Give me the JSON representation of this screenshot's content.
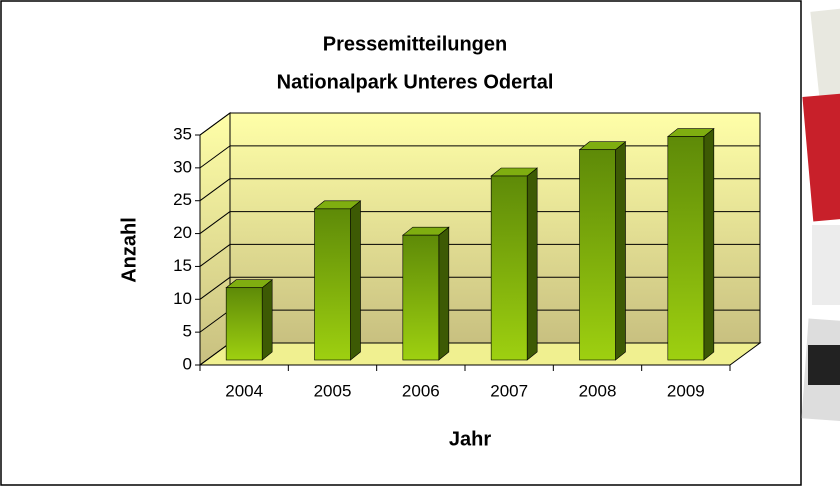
{
  "chart_data": {
    "type": "bar3d",
    "title": [
      "Pressemitteilungen",
      "Nationalpark Unteres Odertal"
    ],
    "x_label": "Jahr",
    "y_label": "Anzahl",
    "categories": [
      "2004",
      "2005",
      "2006",
      "2007",
      "2008",
      "2009"
    ],
    "values": [
      11,
      23,
      19,
      28,
      32,
      34
    ],
    "color": "#7fae10",
    "ylim": [
      0,
      35
    ],
    "yticks": [
      0,
      5,
      10,
      15,
      20,
      25,
      30,
      35
    ],
    "grid": true
  }
}
